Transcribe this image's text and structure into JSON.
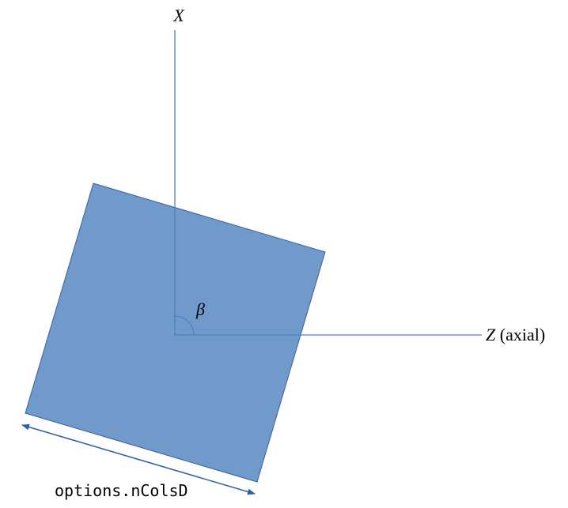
{
  "diagram": {
    "x_axis_label": "X",
    "z_axis_label": "Z",
    "z_axis_suffix": " (axial)",
    "angle_label": "β",
    "width_label": "options.nColsD"
  },
  "colors": {
    "panel_fill": "#7099cc",
    "panel_stroke": "#3a5f99",
    "axis": "#4f81bd",
    "arrow": "#2f5fa8"
  }
}
